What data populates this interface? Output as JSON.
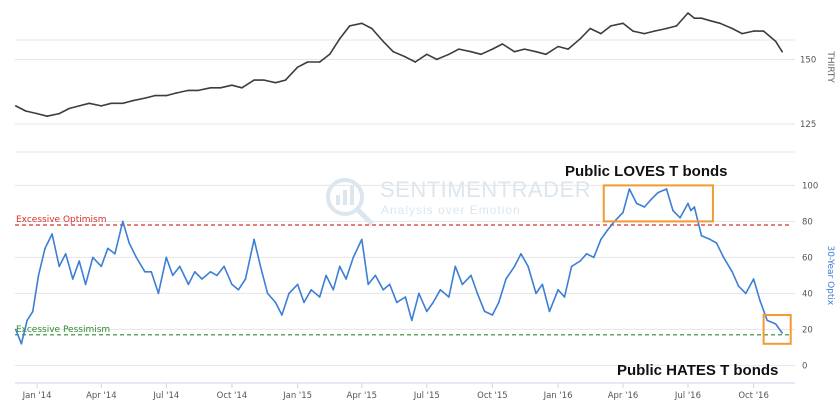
{
  "watermark": {
    "brand": "SENTIMENTRADER",
    "tagline": "Analysis over Emotion"
  },
  "chart_data": [
    {
      "type": "line",
      "name": "THIRTY",
      "ylabel": "THIRTY",
      "color": "#3d3d3d",
      "ylim": [
        118,
        168
      ],
      "yticks": [
        125,
        150
      ],
      "grid": true,
      "x": [
        "2013-12-02",
        "2013-12-16",
        "2014-01-01",
        "2014-01-15",
        "2014-02-01",
        "2014-02-15",
        "2014-03-01",
        "2014-03-15",
        "2014-04-01",
        "2014-04-15",
        "2014-05-01",
        "2014-05-15",
        "2014-06-01",
        "2014-06-15",
        "2014-07-01",
        "2014-07-15",
        "2014-08-01",
        "2014-08-15",
        "2014-09-01",
        "2014-09-15",
        "2014-10-01",
        "2014-10-15",
        "2014-11-01",
        "2014-11-15",
        "2014-12-01",
        "2014-12-15",
        "2015-01-01",
        "2015-01-15",
        "2015-02-01",
        "2015-02-15",
        "2015-03-01",
        "2015-03-15",
        "2015-04-01",
        "2015-04-15",
        "2015-05-01",
        "2015-05-15",
        "2015-06-01",
        "2015-06-15",
        "2015-07-01",
        "2015-07-15",
        "2015-08-01",
        "2015-08-15",
        "2015-09-01",
        "2015-09-15",
        "2015-10-01",
        "2015-10-15",
        "2015-11-01",
        "2015-11-15",
        "2015-12-01",
        "2015-12-15",
        "2016-01-01",
        "2016-01-15",
        "2016-02-01",
        "2016-02-15",
        "2016-03-01",
        "2016-03-15",
        "2016-04-01",
        "2016-04-15",
        "2016-05-01",
        "2016-05-15",
        "2016-06-01",
        "2016-06-15",
        "2016-07-01",
        "2016-07-10",
        "2016-07-20",
        "2016-08-01",
        "2016-08-15",
        "2016-09-01",
        "2016-09-15",
        "2016-10-01",
        "2016-10-15",
        "2016-11-01",
        "2016-11-10"
      ],
      "values": [
        132,
        130,
        129,
        128,
        129,
        131,
        132,
        133,
        132,
        133,
        133,
        134,
        135,
        136,
        136,
        137,
        138,
        138,
        139,
        139,
        140,
        139,
        142,
        142,
        141,
        142,
        147,
        149,
        149,
        152,
        158,
        163,
        164,
        162,
        157,
        153,
        151,
        149,
        152,
        150,
        152,
        154,
        153,
        152,
        154,
        156,
        153,
        154,
        153,
        152,
        155,
        154,
        158,
        162,
        160,
        163,
        164,
        161,
        160,
        161,
        162,
        163,
        168,
        166,
        166,
        165,
        164,
        162,
        160,
        161,
        161,
        157,
        153
      ]
    },
    {
      "type": "line",
      "name": "30-Year Optix",
      "ylabel": "30-Year Optix",
      "color": "#3c7fd4",
      "ylim": [
        -7,
        113
      ],
      "yticks": [
        0,
        20,
        40,
        60,
        80,
        100
      ],
      "grid": true,
      "xlim": [
        "2013-12-01",
        "2016-11-28"
      ],
      "xticks": [
        "2014-01-01",
        "2014-04-01",
        "2014-07-01",
        "2014-10-01",
        "2015-01-01",
        "2015-04-01",
        "2015-07-01",
        "2015-10-01",
        "2016-01-01",
        "2016-04-01",
        "2016-07-01",
        "2016-10-01"
      ],
      "xtick_labels": [
        "Jan '14",
        "Apr '14",
        "Jul '14",
        "Oct '14",
        "Jan '15",
        "Apr '15",
        "Jul '15",
        "Oct '15",
        "Jan '16",
        "Apr '16",
        "Jul '16",
        "Oct '16"
      ],
      "x": [
        "2013-12-02",
        "2013-12-10",
        "2013-12-18",
        "2013-12-26",
        "2014-01-03",
        "2014-01-12",
        "2014-01-22",
        "2014-02-01",
        "2014-02-10",
        "2014-02-20",
        "2014-03-01",
        "2014-03-10",
        "2014-03-20",
        "2014-04-01",
        "2014-04-10",
        "2014-04-20",
        "2014-05-01",
        "2014-05-10",
        "2014-05-20",
        "2014-06-01",
        "2014-06-10",
        "2014-06-20",
        "2014-07-01",
        "2014-07-10",
        "2014-07-20",
        "2014-08-01",
        "2014-08-10",
        "2014-08-20",
        "2014-09-01",
        "2014-09-10",
        "2014-09-20",
        "2014-10-01",
        "2014-10-10",
        "2014-10-20",
        "2014-11-01",
        "2014-11-10",
        "2014-11-20",
        "2014-12-01",
        "2014-12-10",
        "2014-12-20",
        "2015-01-01",
        "2015-01-10",
        "2015-01-20",
        "2015-02-01",
        "2015-02-10",
        "2015-02-20",
        "2015-03-01",
        "2015-03-10",
        "2015-03-20",
        "2015-04-01",
        "2015-04-10",
        "2015-04-20",
        "2015-05-01",
        "2015-05-10",
        "2015-05-20",
        "2015-06-01",
        "2015-06-10",
        "2015-06-20",
        "2015-07-01",
        "2015-07-10",
        "2015-07-20",
        "2015-08-01",
        "2015-08-10",
        "2015-08-20",
        "2015-09-01",
        "2015-09-10",
        "2015-09-20",
        "2015-10-01",
        "2015-10-10",
        "2015-10-20",
        "2015-11-01",
        "2015-11-10",
        "2015-11-20",
        "2015-12-01",
        "2015-12-10",
        "2015-12-20",
        "2016-01-01",
        "2016-01-10",
        "2016-01-20",
        "2016-02-01",
        "2016-02-10",
        "2016-02-20",
        "2016-03-01",
        "2016-03-10",
        "2016-03-20",
        "2016-04-01",
        "2016-04-10",
        "2016-04-20",
        "2016-05-01",
        "2016-05-10",
        "2016-05-20",
        "2016-06-01",
        "2016-06-10",
        "2016-06-20",
        "2016-07-01",
        "2016-07-05",
        "2016-07-10",
        "2016-07-20",
        "2016-08-01",
        "2016-08-10",
        "2016-08-20",
        "2016-09-01",
        "2016-09-10",
        "2016-09-20",
        "2016-10-01",
        "2016-10-10",
        "2016-10-20",
        "2016-11-01",
        "2016-11-10"
      ],
      "values": [
        20,
        12,
        25,
        30,
        50,
        65,
        73,
        55,
        62,
        48,
        58,
        45,
        60,
        55,
        65,
        62,
        80,
        68,
        60,
        52,
        52,
        40,
        60,
        50,
        55,
        45,
        52,
        48,
        52,
        50,
        55,
        45,
        42,
        48,
        70,
        55,
        40,
        35,
        28,
        40,
        45,
        35,
        42,
        38,
        50,
        42,
        55,
        48,
        60,
        70,
        45,
        50,
        42,
        45,
        35,
        38,
        25,
        40,
        30,
        35,
        42,
        38,
        55,
        45,
        50,
        40,
        30,
        28,
        35,
        48,
        55,
        62,
        55,
        40,
        45,
        30,
        42,
        38,
        55,
        58,
        62,
        60,
        70,
        75,
        80,
        85,
        98,
        90,
        88,
        92,
        96,
        98,
        86,
        82,
        90,
        86,
        88,
        72,
        70,
        68,
        60,
        52,
        44,
        40,
        48,
        36,
        25,
        23,
        18
      ]
    },
    {
      "type": "annotations",
      "reference_lines": [
        {
          "label": "Excessive Optimism",
          "y": 78,
          "color": "#d9302c",
          "style": "dashed"
        },
        {
          "label": "Excessive Pessimism",
          "y": 17,
          "color": "#2e8b2e",
          "style": "dashed"
        }
      ],
      "callouts": [
        {
          "text": "Public LOVES T bonds",
          "x_range": [
            "2016-03-05",
            "2016-08-05"
          ],
          "y_range": [
            80,
            100
          ],
          "box_color": "#f39a32"
        },
        {
          "text": "Public HATES T bonds",
          "x_range": [
            "2016-10-15",
            "2016-11-22"
          ],
          "y_range": [
            12,
            28
          ],
          "box_color": "#f39a32"
        }
      ]
    }
  ]
}
